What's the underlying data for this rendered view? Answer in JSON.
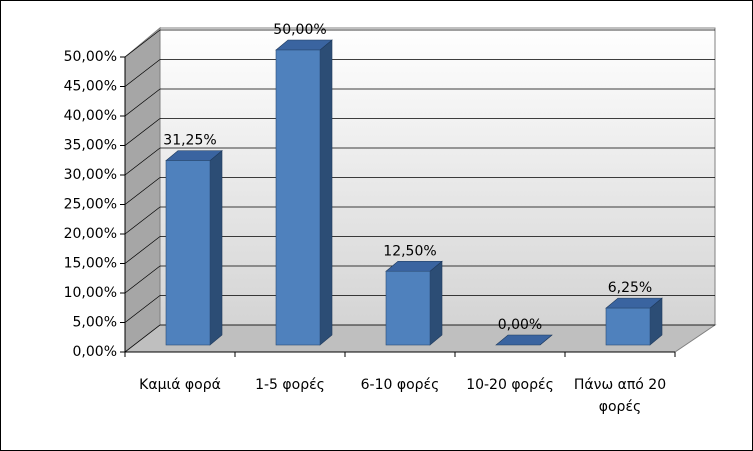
{
  "chart_data": {
    "type": "bar3d",
    "categories": [
      "Καμιά φορά",
      "1-5 φορές",
      "6-10 φορές",
      "10-20 φορές",
      "Πάνω από 20 φορές"
    ],
    "values": [
      31.25,
      50,
      12.5,
      0,
      6.25
    ],
    "value_labels": [
      "31,25%",
      "50,00%",
      "12,50%",
      "0,00%",
      "6,25%"
    ],
    "color": "#4f81bd",
    "ylim": [
      0,
      50
    ],
    "yticks": [
      {
        "value": 0,
        "label": "0,00%"
      },
      {
        "value": 5,
        "label": "5,00%"
      },
      {
        "value": 10,
        "label": "10,00%"
      },
      {
        "value": 15,
        "label": "15,00%"
      },
      {
        "value": 20,
        "label": "20,00%"
      },
      {
        "value": 25,
        "label": "25,00%"
      },
      {
        "value": 30,
        "label": "30,00%"
      },
      {
        "value": 35,
        "label": "35,00%"
      },
      {
        "value": 40,
        "label": "40,00%"
      },
      {
        "value": 45,
        "label": "45,00%"
      },
      {
        "value": 50,
        "label": "50,00%"
      }
    ],
    "grid": true
  }
}
